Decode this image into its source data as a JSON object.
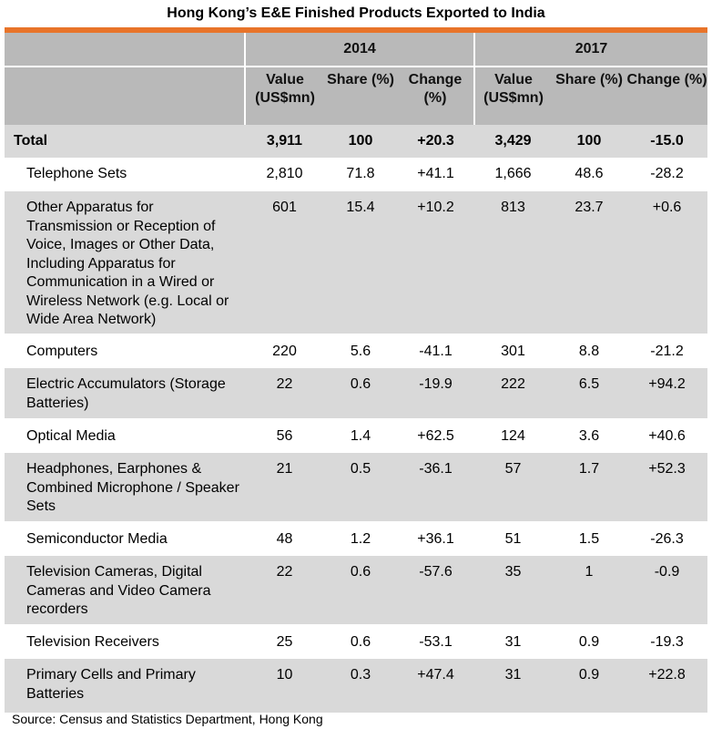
{
  "title": "Hong Kong’s E&E Finished Products Exported to India",
  "colors": {
    "accent": "#e8742a",
    "header_bg": "#b9b9b9",
    "band_bg": "#d9d9d9"
  },
  "header": {
    "year1": "2014",
    "year2": "2017",
    "col_value": "Value (US$mn)",
    "col_share": "Share (%)",
    "col_change": "Change (%)"
  },
  "total": {
    "label": "Total",
    "v14": "3,911",
    "s14": "100",
    "c14": "+20.3",
    "v17": "3,429",
    "s17": "100",
    "c17": "-15.0"
  },
  "rows": [
    {
      "label": "Telephone Sets",
      "v14": "2,810",
      "s14": "71.8",
      "c14": "+41.1",
      "v17": "1,666",
      "s17": "48.6",
      "c17": "-28.2"
    },
    {
      "label": "Other Apparatus for Transmission or Reception of Voice, Images or Other Data, Including Apparatus for Communication in a Wired or Wireless Network (e.g. Local or Wide Area Network)",
      "v14": "601",
      "s14": "15.4",
      "c14": "+10.2",
      "v17": "813",
      "s17": "23.7",
      "c17": "+0.6"
    },
    {
      "label": "Computers",
      "v14": "220",
      "s14": "5.6",
      "c14": "-41.1",
      "v17": "301",
      "s17": "8.8",
      "c17": "-21.2"
    },
    {
      "label": "Electric Accumulators (Storage Batteries)",
      "v14": "22",
      "s14": "0.6",
      "c14": "-19.9",
      "v17": "222",
      "s17": "6.5",
      "c17": "+94.2"
    },
    {
      "label": "Optical Media",
      "v14": "56",
      "s14": "1.4",
      "c14": "+62.5",
      "v17": "124",
      "s17": "3.6",
      "c17": "+40.6"
    },
    {
      "label": "Headphones, Earphones & Combined Microphone / Speaker Sets",
      "v14": "21",
      "s14": "0.5",
      "c14": "-36.1",
      "v17": "57",
      "s17": "1.7",
      "c17": "+52.3"
    },
    {
      "label": "Semiconductor Media",
      "v14": "48",
      "s14": "1.2",
      "c14": "+36.1",
      "v17": "51",
      "s17": "1.5",
      "c17": "-26.3"
    },
    {
      "label": "Television Cameras, Digital Cameras and Video Camera recorders",
      "v14": "22",
      "s14": "0.6",
      "c14": "-57.6",
      "v17": "35",
      "s17": "1",
      "c17": "-0.9"
    },
    {
      "label": "Television Receivers",
      "v14": "25",
      "s14": "0.6",
      "c14": "-53.1",
      "v17": "31",
      "s17": "0.9",
      "c17": "-19.3"
    },
    {
      "label": "Primary Cells and Primary Batteries",
      "v14": "10",
      "s14": "0.3",
      "c14": "+47.4",
      "v17": "31",
      "s17": "0.9",
      "c17": "+22.8"
    }
  ],
  "source": "Source: Census and Statistics Department, Hong Kong"
}
